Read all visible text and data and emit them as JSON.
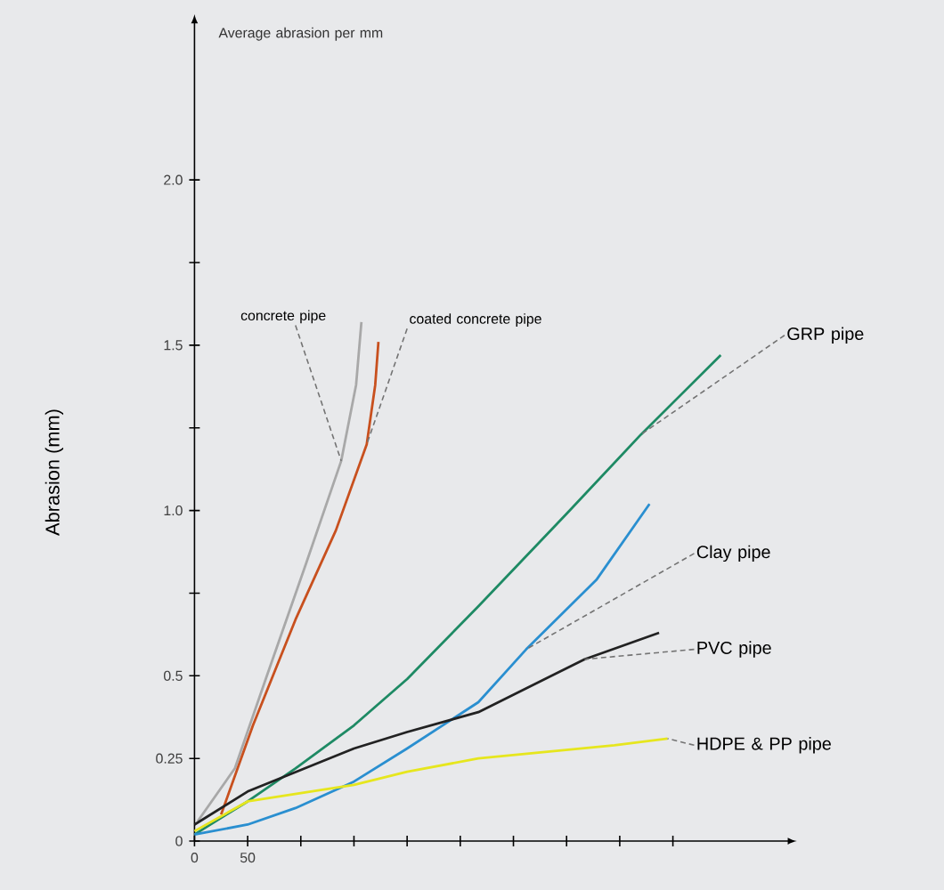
{
  "chart_data": {
    "type": "line",
    "ylabel": "Abrasion (mm)",
    "annotations": [
      "Average abrasion per mm"
    ],
    "xlim": [
      0,
      560
    ],
    "ylim": [
      0,
      2.48
    ],
    "xticks": [
      0,
      50,
      {
        "value": 100,
        "label": null
      },
      {
        "value": 150,
        "label": null
      },
      {
        "value": 200,
        "label": null
      },
      {
        "value": 250,
        "label": null
      },
      {
        "value": 300,
        "label": null
      },
      {
        "value": 350,
        "label": null
      },
      {
        "value": 400,
        "label": null
      },
      {
        "value": 450,
        "label": null
      }
    ],
    "yticks": [
      0,
      0.25,
      0.5,
      {
        "value": 0.75,
        "label": null
      },
      {
        "value": 1,
        "label": "1.0"
      },
      {
        "value": 1.25,
        "label": null
      },
      {
        "value": 1.5,
        "label": "1.5"
      },
      {
        "value": 1.75,
        "label": null
      },
      {
        "value": 2,
        "label": "2.0"
      }
    ],
    "series": [
      {
        "name": "concrete pipe",
        "color": "#a8a8a8",
        "x": [
          3,
          38,
          67,
          105,
          138,
          152,
          157
        ],
        "values": [
          0.06,
          0.22,
          0.49,
          0.84,
          1.15,
          1.38,
          1.57
        ]
      },
      {
        "name": "coated concrete pipe",
        "color": "#c8501e",
        "x": [
          25,
          55,
          95,
          133,
          162,
          170,
          173
        ],
        "values": [
          0.08,
          0.35,
          0.67,
          0.94,
          1.2,
          1.38,
          1.51
        ]
      },
      {
        "name": "GRP pipe",
        "color": "#1e8a64",
        "x": [
          0,
          50,
          95,
          150,
          200,
          267,
          350,
          420,
          495
        ],
        "values": [
          0.02,
          0.12,
          0.22,
          0.35,
          0.49,
          0.71,
          0.99,
          1.23,
          1.47
        ]
      },
      {
        "name": "Clay pipe",
        "color": "#2a8fd0",
        "x": [
          0,
          50,
          95,
          150,
          200,
          267,
          312,
          378,
          428
        ],
        "values": [
          0.02,
          0.05,
          0.1,
          0.18,
          0.28,
          0.42,
          0.58,
          0.79,
          1.02
        ]
      },
      {
        "name": "PVC pipe",
        "color": "#222222",
        "x": [
          0,
          50,
          150,
          200,
          267,
          367,
          437
        ],
        "values": [
          0.05,
          0.15,
          0.28,
          0.33,
          0.39,
          0.55,
          0.63
        ]
      },
      {
        "name": "HDPE & PP pipe",
        "color": "#e6e61e",
        "x": [
          0,
          50,
          150,
          200,
          267,
          395,
          445
        ],
        "values": [
          0.03,
          0.12,
          0.17,
          0.21,
          0.25,
          0.29,
          0.31
        ]
      }
    ]
  }
}
